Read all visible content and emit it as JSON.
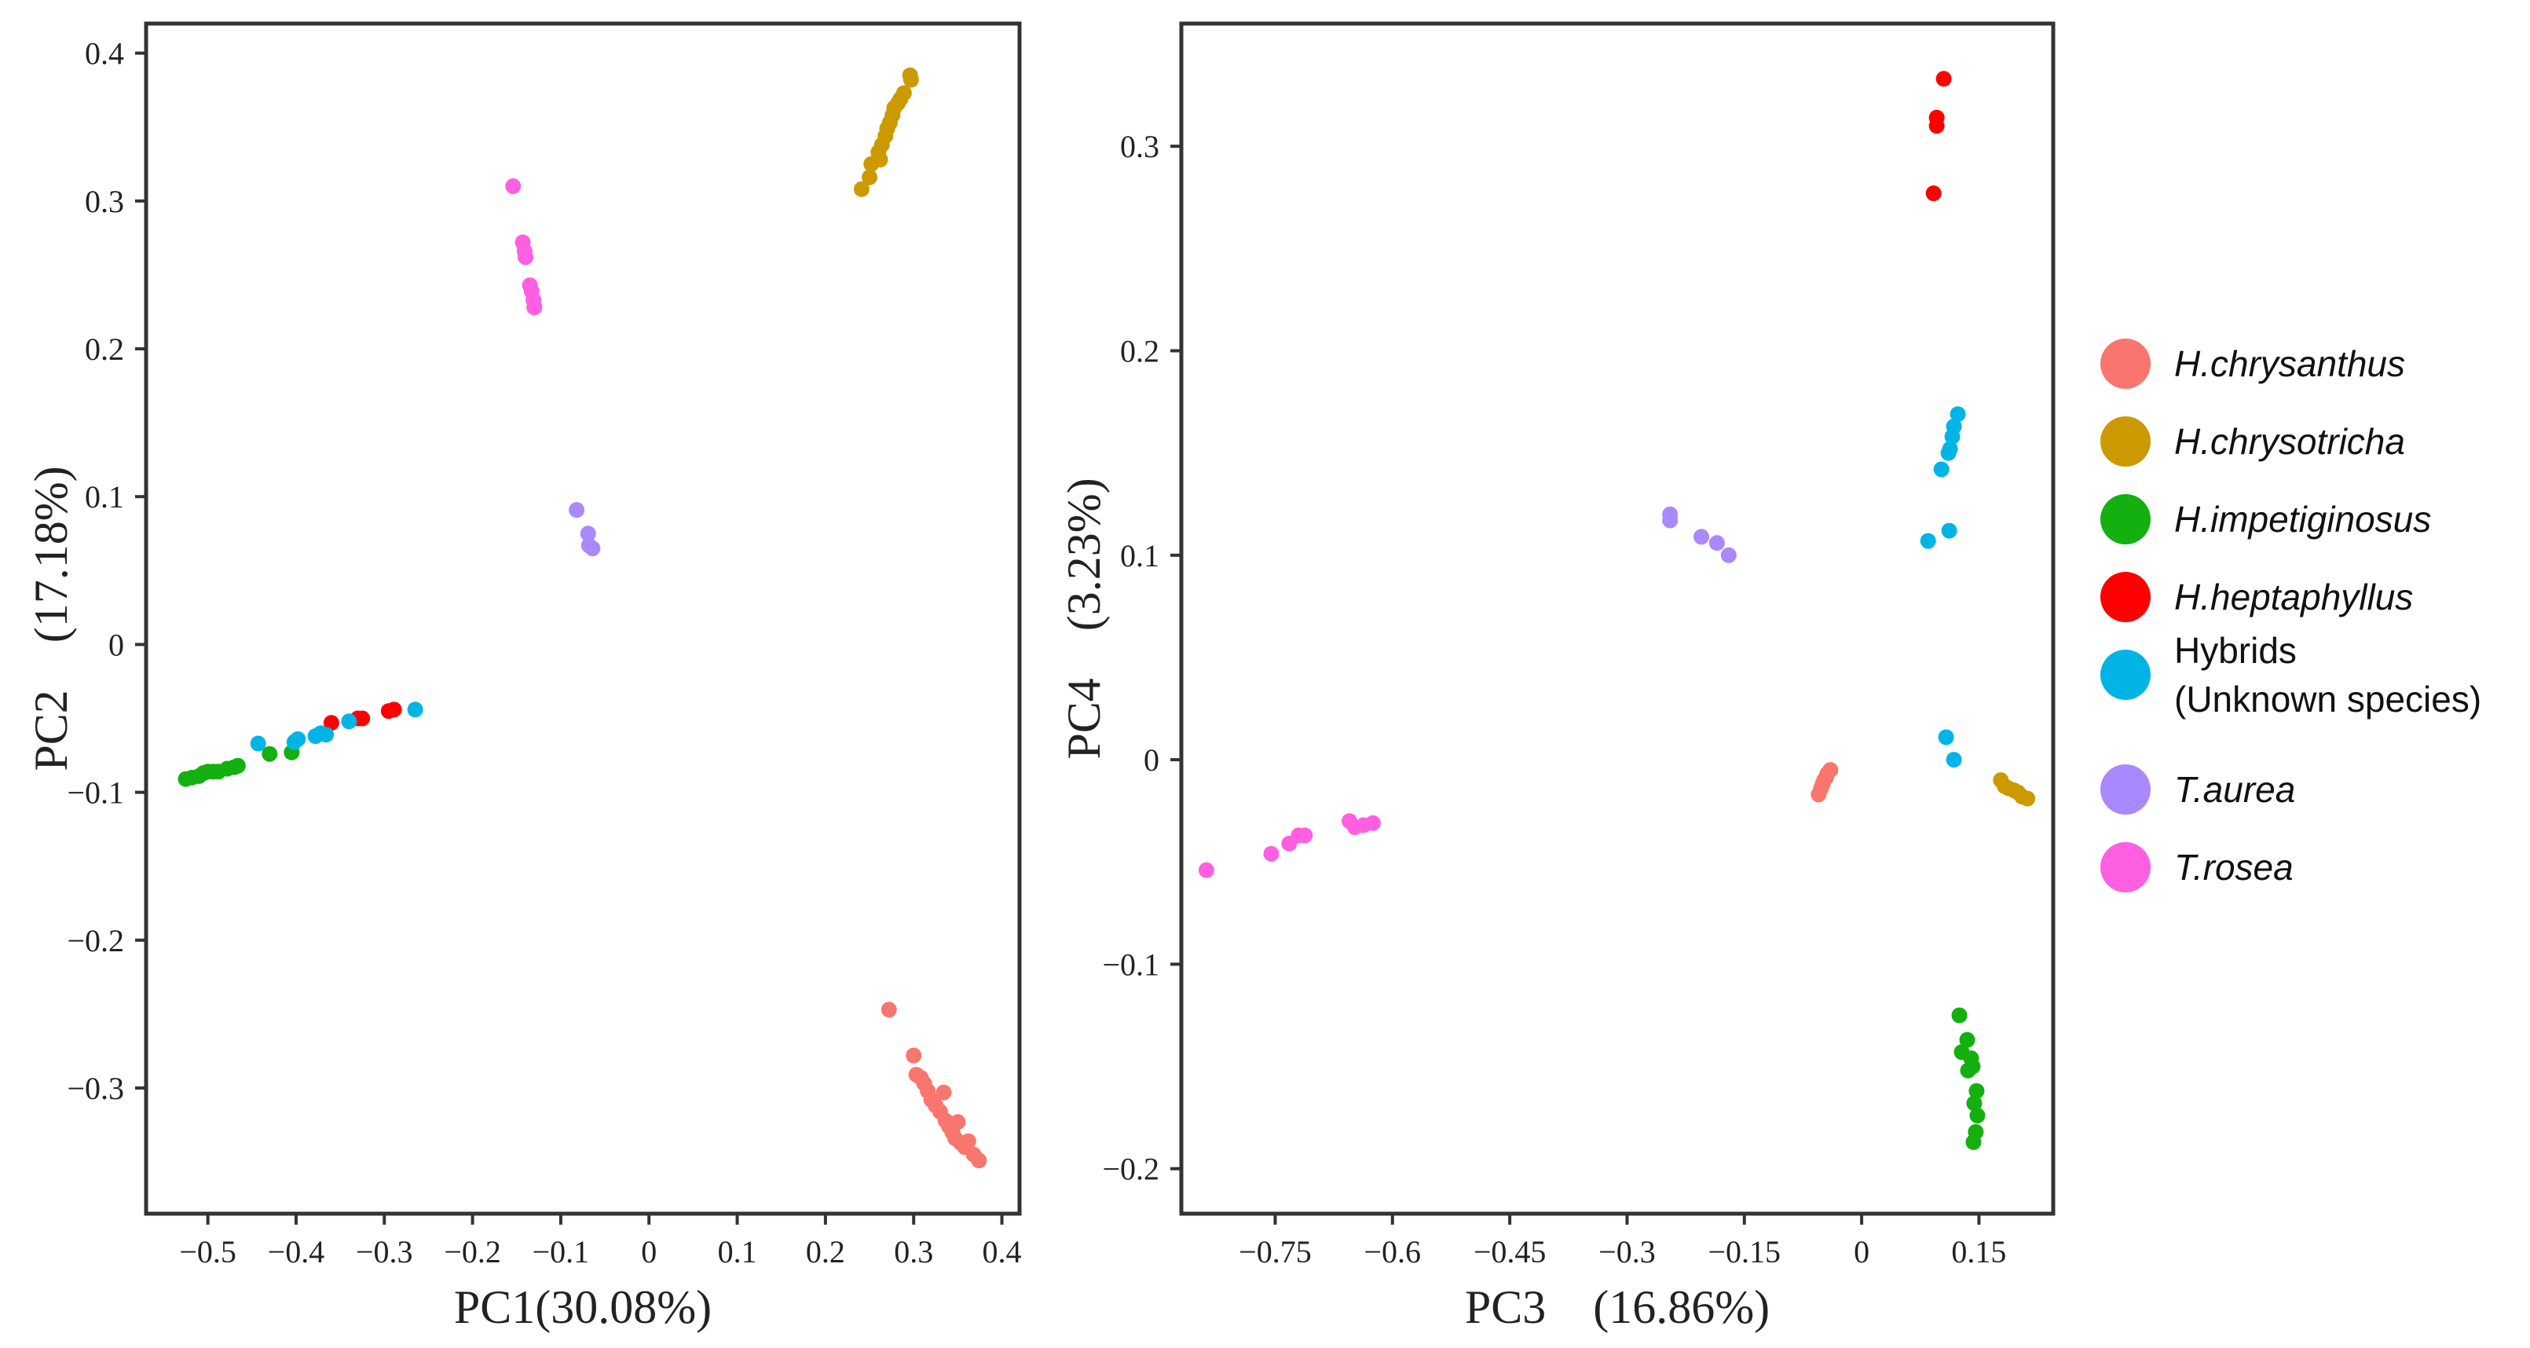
{
  "legend": {
    "items": [
      {
        "label": "H.chrysanthus",
        "lines": [
          "H.chrysanthus"
        ],
        "color": "#F8766D",
        "italic": true
      },
      {
        "label": "H.chrysotricha",
        "lines": [
          "H.chrysotricha"
        ],
        "color": "#CC9900",
        "italic": true
      },
      {
        "label": "H.impetiginosus",
        "lines": [
          "H.impetiginosus"
        ],
        "color": "#13B010",
        "italic": true
      },
      {
        "label": "H.heptaphyllus",
        "lines": [
          "H.heptaphyllus"
        ],
        "color": "#FF0000",
        "italic": true
      },
      {
        "label": "Hybrids (Unknown species)",
        "lines": [
          "Hybrids",
          "(Unknown species)"
        ],
        "color": "#00B4E6",
        "italic": false
      },
      {
        "label": "T.aurea",
        "lines": [
          "T.aurea"
        ],
        "color": "#AA88FF",
        "italic": true
      },
      {
        "label": "T.rosea",
        "lines": [
          "T.rosea"
        ],
        "color": "#FF5FE0",
        "italic": true
      }
    ]
  },
  "chart_data": [
    {
      "type": "scatter",
      "title": "",
      "xlabel": "PC1(30.08%)",
      "ylabel": "PC2　(17.18%)",
      "xlim": [
        -0.57,
        0.42
      ],
      "ylim": [
        -0.385,
        0.42
      ],
      "xticks": [
        -0.5,
        -0.4,
        -0.3,
        -0.2,
        -0.1,
        0,
        0.1,
        0.2,
        0.3,
        0.4
      ],
      "xtick_labels": [
        "−0.5",
        "−0.4",
        "−0.3",
        "−0.2",
        "−0.1",
        "0",
        "0.1",
        "0.2",
        "0.3",
        "0.4"
      ],
      "yticks": [
        -0.3,
        -0.2,
        -0.1,
        0,
        0.1,
        0.2,
        0.3,
        0.4
      ],
      "ytick_labels": [
        "−0.3",
        "−0.2",
        "−0.1",
        "0",
        "0.1",
        "0.2",
        "0.3",
        "0.4"
      ],
      "grid": false,
      "series": [
        {
          "name": "H.chrysanthus",
          "color": "#F8766D",
          "points": [
            [
              0.272,
              -0.247
            ],
            [
              0.3,
              -0.278
            ],
            [
              0.303,
              -0.291
            ],
            [
              0.308,
              -0.293
            ],
            [
              0.312,
              -0.297
            ],
            [
              0.316,
              -0.302
            ],
            [
              0.32,
              -0.308
            ],
            [
              0.325,
              -0.312
            ],
            [
              0.33,
              -0.316
            ],
            [
              0.334,
              -0.303
            ],
            [
              0.336,
              -0.322
            ],
            [
              0.34,
              -0.326
            ],
            [
              0.344,
              -0.33
            ],
            [
              0.347,
              -0.334
            ],
            [
              0.35,
              -0.323
            ],
            [
              0.353,
              -0.337
            ],
            [
              0.358,
              -0.34
            ],
            [
              0.362,
              -0.336
            ],
            [
              0.368,
              -0.345
            ],
            [
              0.374,
              -0.349
            ]
          ]
        },
        {
          "name": "H.chrysotricha",
          "color": "#CC9900",
          "points": [
            [
              0.241,
              0.308
            ],
            [
              0.25,
              0.316
            ],
            [
              0.252,
              0.325
            ],
            [
              0.26,
              0.333
            ],
            [
              0.264,
              0.338
            ],
            [
              0.262,
              0.328
            ],
            [
              0.268,
              0.344
            ],
            [
              0.27,
              0.349
            ],
            [
              0.273,
              0.353
            ],
            [
              0.276,
              0.358
            ],
            [
              0.278,
              0.363
            ],
            [
              0.282,
              0.366
            ],
            [
              0.285,
              0.369
            ],
            [
              0.289,
              0.373
            ],
            [
              0.296,
              0.385
            ],
            [
              0.297,
              0.382
            ]
          ]
        },
        {
          "name": "H.impetiginosus",
          "color": "#13B010",
          "points": [
            [
              -0.525,
              -0.091
            ],
            [
              -0.518,
              -0.09
            ],
            [
              -0.51,
              -0.089
            ],
            [
              -0.505,
              -0.087
            ],
            [
              -0.5,
              -0.086
            ],
            [
              -0.494,
              -0.086
            ],
            [
              -0.488,
              -0.086
            ],
            [
              -0.478,
              -0.084
            ],
            [
              -0.47,
              -0.083
            ],
            [
              -0.466,
              -0.082
            ],
            [
              -0.43,
              -0.074
            ],
            [
              -0.405,
              -0.073
            ]
          ]
        },
        {
          "name": "H.heptaphyllus",
          "color": "#FF0000",
          "points": [
            [
              -0.36,
              -0.053
            ],
            [
              -0.33,
              -0.05
            ],
            [
              -0.325,
              -0.05
            ],
            [
              -0.295,
              -0.045
            ],
            [
              -0.289,
              -0.044
            ]
          ]
        },
        {
          "name": "Hybrids (Unknown species)",
          "color": "#00B4E6",
          "points": [
            [
              -0.443,
              -0.067
            ],
            [
              -0.402,
              -0.066
            ],
            [
              -0.398,
              -0.064
            ],
            [
              -0.378,
              -0.062
            ],
            [
              -0.372,
              -0.06
            ],
            [
              -0.366,
              -0.061
            ],
            [
              -0.34,
              -0.052
            ],
            [
              -0.265,
              -0.044
            ]
          ]
        },
        {
          "name": "T.aurea",
          "color": "#AA88FF",
          "points": [
            [
              -0.082,
              0.091
            ],
            [
              -0.069,
              0.075
            ],
            [
              -0.068,
              0.067
            ],
            [
              -0.064,
              0.065
            ]
          ]
        },
        {
          "name": "T.rosea",
          "color": "#FF5FE0",
          "points": [
            [
              -0.154,
              0.31
            ],
            [
              -0.143,
              0.272
            ],
            [
              -0.141,
              0.266
            ],
            [
              -0.14,
              0.262
            ],
            [
              -0.135,
              0.243
            ],
            [
              -0.133,
              0.239
            ],
            [
              -0.131,
              0.233
            ],
            [
              -0.13,
              0.228
            ]
          ]
        }
      ]
    },
    {
      "type": "scatter",
      "title": "",
      "xlabel": "PC3　(16.86%)",
      "ylabel": "PC4　(3.23%)",
      "xlim": [
        -0.87,
        0.245
      ],
      "ylim": [
        -0.222,
        0.36
      ],
      "xticks": [
        -0.75,
        -0.6,
        -0.45,
        -0.3,
        -0.15,
        0,
        0.15
      ],
      "xtick_labels": [
        "−0.75",
        "−0.6",
        "−0.45",
        "−0.3",
        "−0.15",
        "0",
        "0.15"
      ],
      "yticks": [
        -0.2,
        -0.1,
        0,
        0.1,
        0.2,
        0.3
      ],
      "ytick_labels": [
        "−0.2",
        "−0.1",
        "0",
        "0.1",
        "0.2",
        "0.3"
      ],
      "grid": false,
      "series": [
        {
          "name": "H.chrysanthus",
          "color": "#F8766D",
          "points": [
            [
              -0.055,
              -0.017
            ],
            [
              -0.052,
              -0.014
            ],
            [
              -0.05,
              -0.012
            ],
            [
              -0.048,
              -0.01
            ],
            [
              -0.046,
              -0.009
            ],
            [
              -0.044,
              -0.007
            ],
            [
              -0.04,
              -0.005
            ]
          ]
        },
        {
          "name": "H.chrysotricha",
          "color": "#CC9900",
          "points": [
            [
              0.178,
              -0.01
            ],
            [
              0.183,
              -0.013
            ],
            [
              0.188,
              -0.014
            ],
            [
              0.195,
              -0.015
            ],
            [
              0.2,
              -0.016
            ],
            [
              0.205,
              -0.018
            ],
            [
              0.212,
              -0.019
            ]
          ]
        },
        {
          "name": "H.impetiginosus",
          "color": "#13B010",
          "points": [
            [
              0.125,
              -0.125
            ],
            [
              0.135,
              -0.137
            ],
            [
              0.128,
              -0.143
            ],
            [
              0.14,
              -0.146
            ],
            [
              0.136,
              -0.152
            ],
            [
              0.142,
              -0.15
            ],
            [
              0.147,
              -0.162
            ],
            [
              0.144,
              -0.168
            ],
            [
              0.148,
              -0.174
            ],
            [
              0.146,
              -0.182
            ],
            [
              0.143,
              -0.187
            ]
          ]
        },
        {
          "name": "H.heptaphyllus",
          "color": "#FF0000",
          "points": [
            [
              0.105,
              0.333
            ],
            [
              0.096,
              0.314
            ],
            [
              0.096,
              0.31
            ],
            [
              0.092,
              0.277
            ]
          ]
        },
        {
          "name": "Hybrids (Unknown species)",
          "color": "#00B4E6",
          "points": [
            [
              0.123,
              0.169
            ],
            [
              0.118,
              0.163
            ],
            [
              0.116,
              0.158
            ],
            [
              0.113,
              0.152
            ],
            [
              0.111,
              0.15
            ],
            [
              0.102,
              0.142
            ],
            [
              0.112,
              0.112
            ],
            [
              0.085,
              0.107
            ],
            [
              0.108,
              0.011
            ],
            [
              0.118,
              0.0
            ]
          ]
        },
        {
          "name": "T.aurea",
          "color": "#AA88FF",
          "points": [
            [
              -0.245,
              0.12
            ],
            [
              -0.245,
              0.117
            ],
            [
              -0.205,
              0.109
            ],
            [
              -0.185,
              0.106
            ],
            [
              -0.17,
              0.1
            ]
          ]
        },
        {
          "name": "T.rosea",
          "color": "#FF5FE0",
          "points": [
            [
              -0.838,
              -0.054
            ],
            [
              -0.755,
              -0.046
            ],
            [
              -0.732,
              -0.041
            ],
            [
              -0.72,
              -0.037
            ],
            [
              -0.712,
              -0.037
            ],
            [
              -0.655,
              -0.03
            ],
            [
              -0.648,
              -0.033
            ],
            [
              -0.637,
              -0.032
            ],
            [
              -0.625,
              -0.031
            ]
          ]
        }
      ]
    }
  ]
}
